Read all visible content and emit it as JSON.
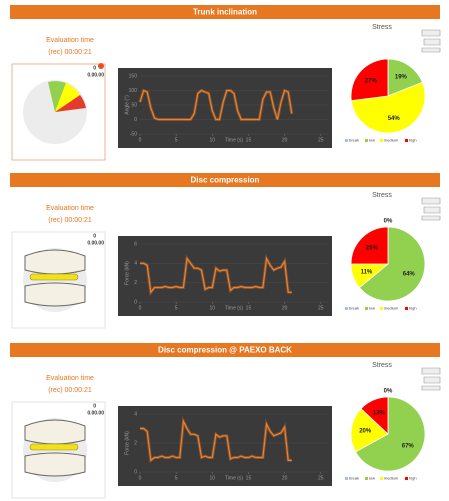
{
  "sections": [
    {
      "title": "Trunk inclination",
      "eval_label": "Evaluation time",
      "eval_time": "(rec) 00:00:21",
      "gauge_count": "0",
      "gauge_time": "0.00.00"
    },
    {
      "title": "Disc compression",
      "eval_label": "Evaluation time",
      "eval_time": "(rec) 00:00:21",
      "gauge_count": "0",
      "gauge_time": "0.00.00"
    },
    {
      "title": "Disc compression @ PAEXO BACK",
      "eval_label": "Evaluation time",
      "eval_time": "(rec) 00:00:21",
      "gauge_count": "0",
      "gauge_time": "0.00.00"
    }
  ],
  "chart_data": [
    {
      "type": "line",
      "x_label": "Time (s)",
      "y_label": "Angle (°)",
      "color": "#f0802a",
      "x": [
        0,
        0.5,
        1,
        1.5,
        2,
        2.5,
        3,
        3.5,
        4,
        4.5,
        5,
        5.5,
        6,
        6.5,
        7,
        7.5,
        8,
        8.5,
        9,
        9.5,
        10,
        10.5,
        11,
        11.5,
        12,
        12.5,
        13,
        13.5,
        14,
        14.5,
        15,
        15.5,
        16,
        16.5,
        17,
        17.5,
        18,
        18.5,
        19,
        19.5,
        20,
        20.5,
        21
      ],
      "values": [
        60,
        100,
        95,
        40,
        5,
        0,
        0,
        0,
        0,
        0,
        0,
        0,
        0,
        0,
        0,
        20,
        90,
        100,
        95,
        90,
        30,
        0,
        0,
        60,
        100,
        100,
        90,
        30,
        0,
        0,
        0,
        0,
        0,
        0,
        70,
        95,
        95,
        40,
        0,
        60,
        100,
        95,
        20
      ],
      "xlim": [
        0,
        26
      ],
      "xticks": [
        0,
        5,
        10,
        15,
        20,
        25
      ],
      "ylim": [
        -50,
        150
      ],
      "yticks": [
        -50,
        0,
        50,
        100,
        150
      ]
    },
    {
      "type": "pie",
      "title": "Stress",
      "categories": [
        "break",
        "low",
        "medium",
        "high"
      ],
      "colors": [
        "#9dc3e6",
        "#92d050",
        "#ffff00",
        "#ff0000"
      ],
      "values": [
        0,
        19,
        54,
        27
      ],
      "value_labels": [
        null,
        "19%",
        "54%",
        "27%"
      ]
    },
    {
      "type": "line",
      "x_label": "Time (s)",
      "y_label": "Force (kN)",
      "color": "#f0802a",
      "x": [
        0,
        0.5,
        1,
        1.5,
        2,
        2.5,
        3,
        3.5,
        4,
        4.5,
        5,
        5.5,
        6,
        6.5,
        7,
        7.5,
        8,
        8.5,
        9,
        9.5,
        10,
        10.5,
        11,
        11.5,
        12,
        12.5,
        13,
        13.5,
        14,
        14.5,
        15,
        15.5,
        16,
        16.5,
        17,
        17.5,
        18,
        18.5,
        19,
        19.5,
        20,
        20.5,
        21
      ],
      "values": [
        4,
        4,
        3.8,
        1,
        1.5,
        1.5,
        1.5,
        1.6,
        1.5,
        1.5,
        1.6,
        1.5,
        1.5,
        4.5,
        4,
        3.5,
        3.5,
        3.3,
        1.3,
        1.5,
        1.5,
        3.5,
        3.2,
        3.3,
        3.3,
        1.2,
        1.5,
        1.5,
        1.6,
        1.5,
        1.5,
        1.5,
        1.6,
        1.5,
        1.5,
        4.5,
        3.8,
        3.3,
        3.5,
        3.6,
        4.2,
        1,
        1
      ],
      "xlim": [
        0,
        26
      ],
      "xticks": [
        0,
        5,
        10,
        15,
        20,
        25
      ],
      "ylim": [
        0,
        6
      ],
      "yticks": [
        0,
        2,
        4,
        6
      ]
    },
    {
      "type": "pie",
      "title": "Stress",
      "categories": [
        "break",
        "low",
        "medium",
        "high"
      ],
      "colors": [
        "#9dc3e6",
        "#92d050",
        "#ffff00",
        "#ff0000"
      ],
      "values": [
        0,
        64,
        11,
        25
      ],
      "value_labels": [
        "0%",
        "64%",
        "11%",
        "25%"
      ]
    },
    {
      "type": "line",
      "x_label": "Time (s)",
      "y_label": "Force (kN)",
      "color": "#f0802a",
      "x": [
        0,
        0.5,
        1,
        1.5,
        2,
        2.5,
        3,
        3.5,
        4,
        4.5,
        5,
        5.5,
        6,
        6.5,
        7,
        7.5,
        8,
        8.5,
        9,
        9.5,
        10,
        10.5,
        11,
        11.5,
        12,
        12.5,
        13,
        13.5,
        14,
        14.5,
        15,
        15.5,
        16,
        16.5,
        17,
        17.5,
        18,
        18.5,
        19,
        19.5,
        20,
        20.5,
        21
      ],
      "values": [
        3,
        3,
        2.8,
        0.8,
        1,
        1,
        1.1,
        1,
        1,
        1.1,
        1,
        1,
        3.5,
        3,
        2.6,
        2.6,
        2.5,
        1,
        1.1,
        1,
        1,
        2.6,
        2.4,
        2.5,
        2.5,
        0.9,
        1,
        1,
        1.1,
        1,
        1,
        1.1,
        1,
        1,
        1,
        3.3,
        2.8,
        2.5,
        2.6,
        2.7,
        3.1,
        0.8,
        0.8
      ],
      "xlim": [
        0,
        26
      ],
      "xticks": [
        0,
        5,
        10,
        15,
        20,
        25
      ],
      "ylim": [
        0,
        4
      ],
      "yticks": [
        0,
        2,
        4
      ]
    },
    {
      "type": "pie",
      "title": "Stress",
      "categories": [
        "break",
        "low",
        "medium",
        "high"
      ],
      "colors": [
        "#9dc3e6",
        "#92d050",
        "#ffff00",
        "#ff0000"
      ],
      "values": [
        0,
        67,
        20,
        13
      ],
      "value_labels": [
        "0%",
        "67%",
        "20%",
        "13%"
      ]
    }
  ]
}
